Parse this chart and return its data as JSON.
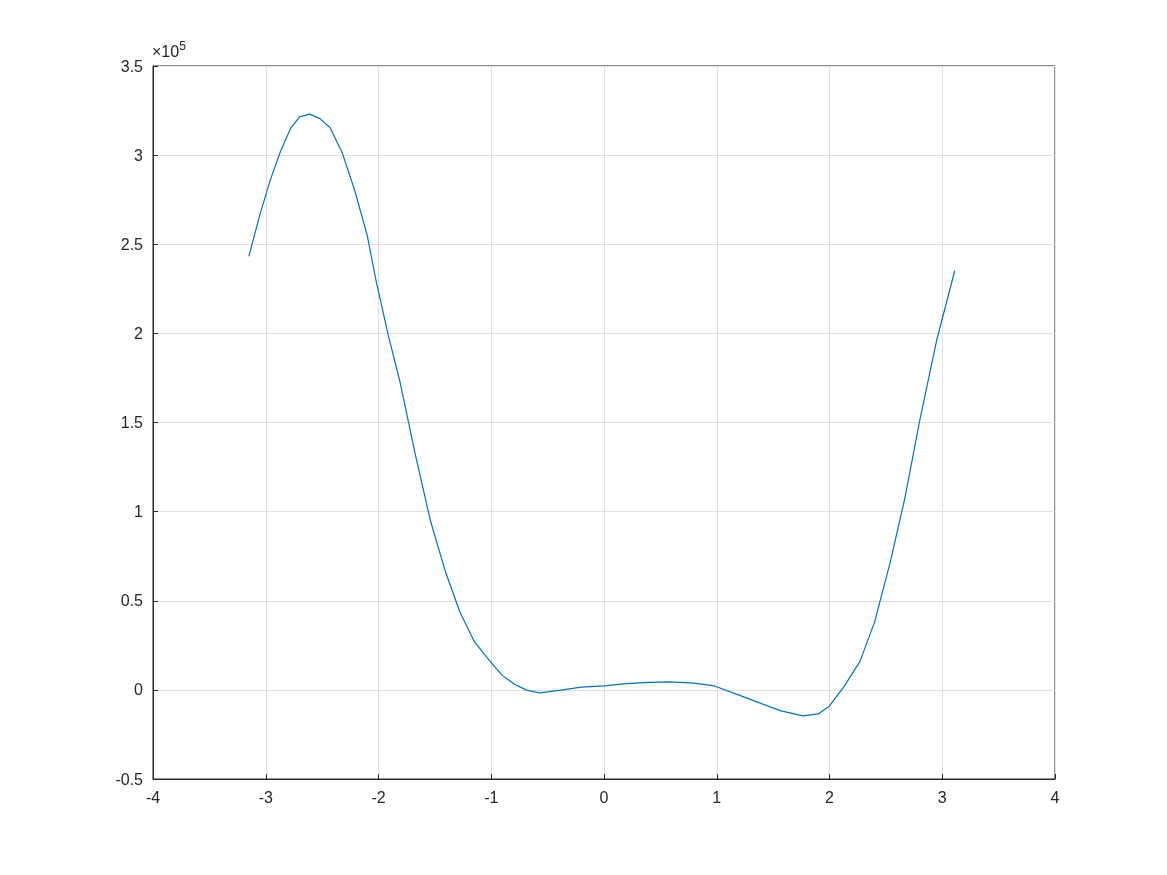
{
  "chart_data": {
    "type": "line",
    "x": [
      -3.149,
      -3.05,
      -2.96,
      -2.87,
      -2.78,
      -2.7,
      -2.61,
      -2.52,
      -2.43,
      -2.32,
      -2.21,
      -2.1,
      -2.02,
      -1.91,
      -1.81,
      -1.68,
      -1.54,
      -1.41,
      -1.28,
      -1.15,
      -1.01,
      -0.9,
      -0.79,
      -0.68,
      -0.57,
      -0.4,
      -0.2,
      0,
      0.2,
      0.4,
      0.585,
      0.8,
      0.98,
      1.18,
      1.38,
      1.57,
      1.765,
      1.9,
      2.0,
      2.13,
      2.27,
      2.4,
      2.54,
      2.67,
      2.8,
      2.95,
      3.11
    ],
    "series": [
      {
        "color": "#0072bd",
        "values": [
          2.435,
          2.67,
          2.86,
          3.02,
          3.15,
          3.215,
          3.23,
          3.205,
          3.155,
          3.01,
          2.8,
          2.55,
          2.29,
          1.98,
          1.73,
          1.34,
          0.95,
          0.67,
          0.44,
          0.27,
          0.16,
          0.08,
          0.03,
          -0.003,
          -0.017,
          -0.003,
          0.015,
          0.022,
          0.035,
          0.042,
          0.045,
          0.038,
          0.022,
          -0.025,
          -0.073,
          -0.118,
          -0.146,
          -0.135,
          -0.09,
          0.02,
          0.16,
          0.38,
          0.72,
          1.08,
          1.51,
          1.96,
          2.35
        ]
      }
    ],
    "xlim": [
      -4,
      4
    ],
    "xticks": [
      -4,
      -3,
      -2,
      -1,
      0,
      1,
      2,
      3,
      4
    ],
    "ylim": [
      -0.5,
      3.5
    ],
    "yticks": [
      -0.5,
      0,
      0.5,
      1,
      1.5,
      2,
      2.5,
      3,
      3.5
    ],
    "annotations": [
      "×10$^{5}$"
    ],
    "grid": true,
    "marker": "none",
    "line_style": "solid"
  }
}
